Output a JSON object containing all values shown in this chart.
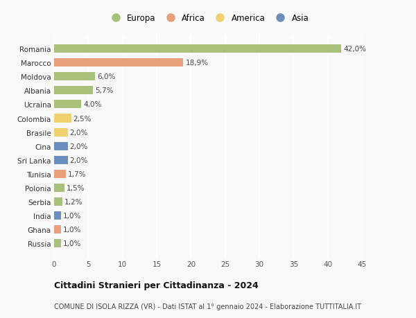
{
  "countries": [
    "Romania",
    "Marocco",
    "Moldova",
    "Albania",
    "Ucraina",
    "Colombia",
    "Brasile",
    "Cina",
    "Sri Lanka",
    "Tunisia",
    "Polonia",
    "Serbia",
    "India",
    "Ghana",
    "Russia"
  ],
  "values": [
    42.0,
    18.9,
    6.0,
    5.7,
    4.0,
    2.5,
    2.0,
    2.0,
    2.0,
    1.7,
    1.5,
    1.2,
    1.0,
    1.0,
    1.0
  ],
  "labels": [
    "42,0%",
    "18,9%",
    "6,0%",
    "5,7%",
    "4,0%",
    "2,5%",
    "2,0%",
    "2,0%",
    "2,0%",
    "1,7%",
    "1,5%",
    "1,2%",
    "1,0%",
    "1,0%",
    "1,0%"
  ],
  "continents": [
    "Europa",
    "Africa",
    "Europa",
    "Europa",
    "Europa",
    "America",
    "America",
    "Asia",
    "Asia",
    "Africa",
    "Europa",
    "Europa",
    "Asia",
    "Africa",
    "Europa"
  ],
  "continent_colors": {
    "Europa": "#a8c07a",
    "Africa": "#e8a07c",
    "America": "#f0d070",
    "Asia": "#6a8fbf"
  },
  "legend_order": [
    "Europa",
    "Africa",
    "America",
    "Asia"
  ],
  "xlim": [
    0,
    45
  ],
  "xticks": [
    0,
    5,
    10,
    15,
    20,
    25,
    30,
    35,
    40,
    45
  ],
  "title": "Cittadini Stranieri per Cittadinanza - 2024",
  "subtitle": "COMUNE DI ISOLA RIZZA (VR) - Dati ISTAT al 1° gennaio 2024 - Elaborazione TUTTITALIA.IT",
  "background_color": "#f9f9f9",
  "bar_height": 0.6,
  "grid_color": "#ffffff",
  "label_fontsize": 7.5,
  "tick_fontsize": 7.5,
  "title_fontsize": 9.0,
  "subtitle_fontsize": 7.0
}
